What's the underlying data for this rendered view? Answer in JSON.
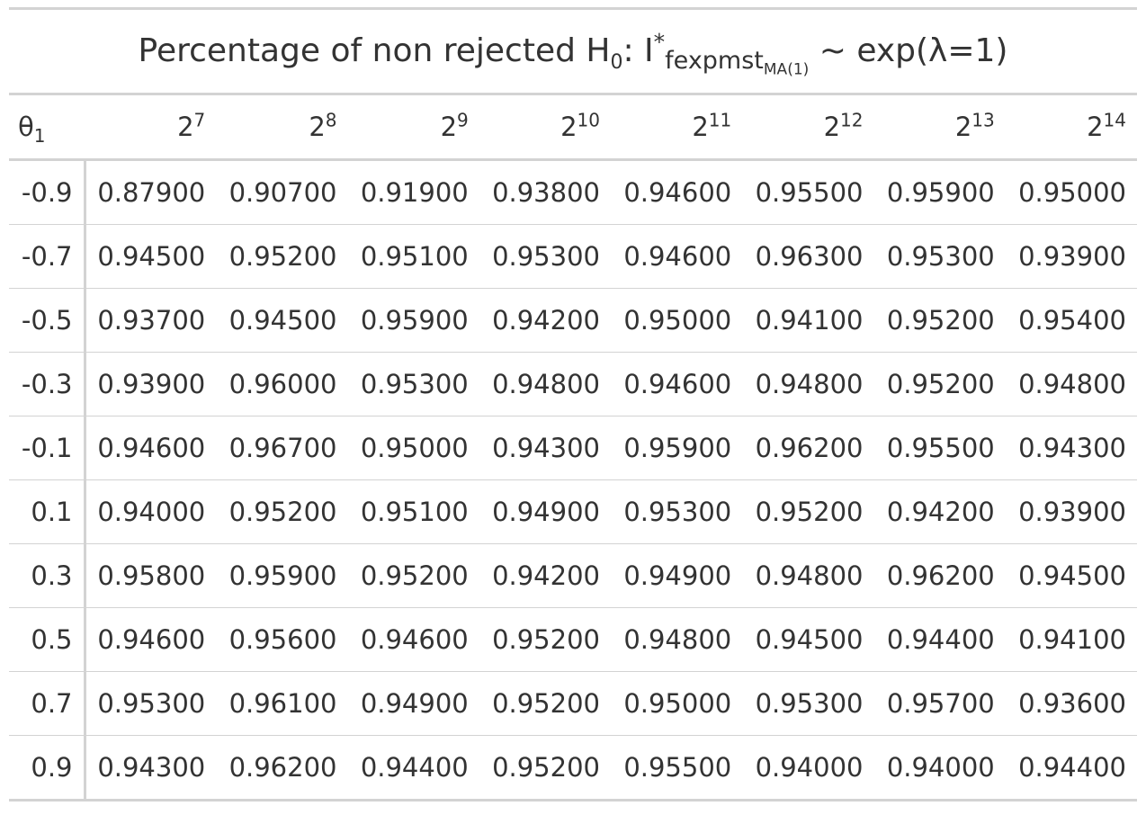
{
  "table": {
    "title": {
      "prefix": "Percentage of non rejected H",
      "h_sub": "0",
      "colon": ": I",
      "star": "*",
      "stat_sub": "fexpmst",
      "stat_sub_sub": "MA(1)",
      "suffix": " ~ exp(λ=1)"
    },
    "row_header": {
      "symbol": "θ",
      "sub": "1"
    },
    "columns": [
      {
        "base": "2",
        "exp": "7"
      },
      {
        "base": "2",
        "exp": "8"
      },
      {
        "base": "2",
        "exp": "9"
      },
      {
        "base": "2",
        "exp": "10"
      },
      {
        "base": "2",
        "exp": "11"
      },
      {
        "base": "2",
        "exp": "12"
      },
      {
        "base": "2",
        "exp": "13"
      },
      {
        "base": "2",
        "exp": "14"
      }
    ],
    "rows": [
      {
        "theta": "-0.9",
        "values": [
          "0.87900",
          "0.90700",
          "0.91900",
          "0.93800",
          "0.94600",
          "0.95500",
          "0.95900",
          "0.95000"
        ]
      },
      {
        "theta": "-0.7",
        "values": [
          "0.94500",
          "0.95200",
          "0.95100",
          "0.95300",
          "0.94600",
          "0.96300",
          "0.95300",
          "0.93900"
        ]
      },
      {
        "theta": "-0.5",
        "values": [
          "0.93700",
          "0.94500",
          "0.95900",
          "0.94200",
          "0.95000",
          "0.94100",
          "0.95200",
          "0.95400"
        ]
      },
      {
        "theta": "-0.3",
        "values": [
          "0.93900",
          "0.96000",
          "0.95300",
          "0.94800",
          "0.94600",
          "0.94800",
          "0.95200",
          "0.94800"
        ]
      },
      {
        "theta": "-0.1",
        "values": [
          "0.94600",
          "0.96700",
          "0.95000",
          "0.94300",
          "0.95900",
          "0.96200",
          "0.95500",
          "0.94300"
        ]
      },
      {
        "theta": "0.1",
        "values": [
          "0.94000",
          "0.95200",
          "0.95100",
          "0.94900",
          "0.95300",
          "0.95200",
          "0.94200",
          "0.93900"
        ]
      },
      {
        "theta": "0.3",
        "values": [
          "0.95800",
          "0.95900",
          "0.95200",
          "0.94200",
          "0.94900",
          "0.94800",
          "0.96200",
          "0.94500"
        ]
      },
      {
        "theta": "0.5",
        "values": [
          "0.94600",
          "0.95600",
          "0.94600",
          "0.95200",
          "0.94800",
          "0.94500",
          "0.94400",
          "0.94100"
        ]
      },
      {
        "theta": "0.7",
        "values": [
          "0.95300",
          "0.96100",
          "0.94900",
          "0.95200",
          "0.95000",
          "0.95300",
          "0.95700",
          "0.93600"
        ]
      },
      {
        "theta": "0.9",
        "values": [
          "0.94300",
          "0.96200",
          "0.94400",
          "0.95200",
          "0.95500",
          "0.94000",
          "0.94000",
          "0.94400"
        ]
      }
    ]
  }
}
